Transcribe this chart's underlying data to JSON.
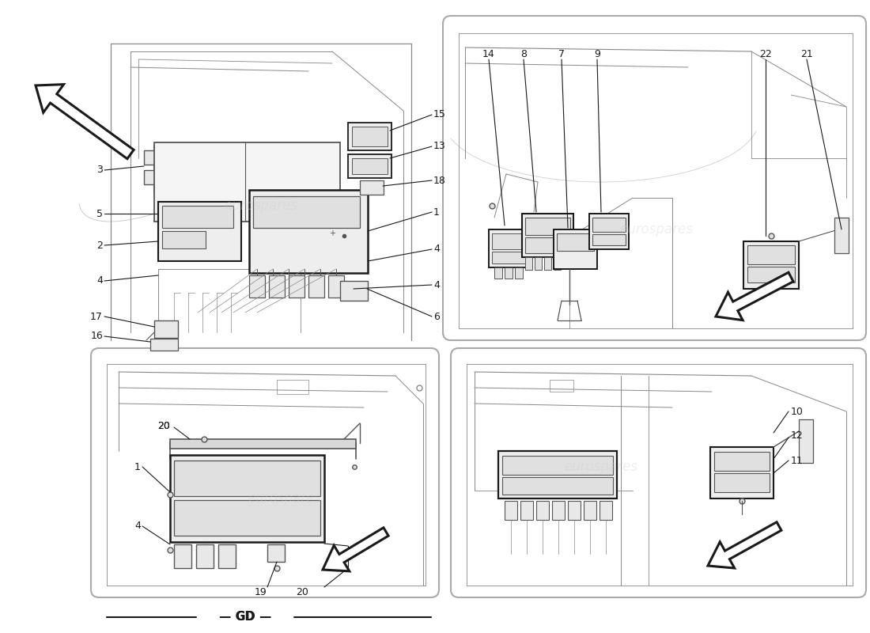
{
  "bg": "#ffffff",
  "lc": "#1a1a1a",
  "lc_light": "#888888",
  "lc_mid": "#555555",
  "panel_edge": "#aaaaaa",
  "watermark": "eurospares",
  "wm_color": "#cccccc",
  "gd_label": "GD",
  "fig_w": 11.0,
  "fig_h": 8.0,
  "dpi": 100,
  "label_fs": 8.5,
  "label_fs_small": 7.5,
  "label_bold": true
}
